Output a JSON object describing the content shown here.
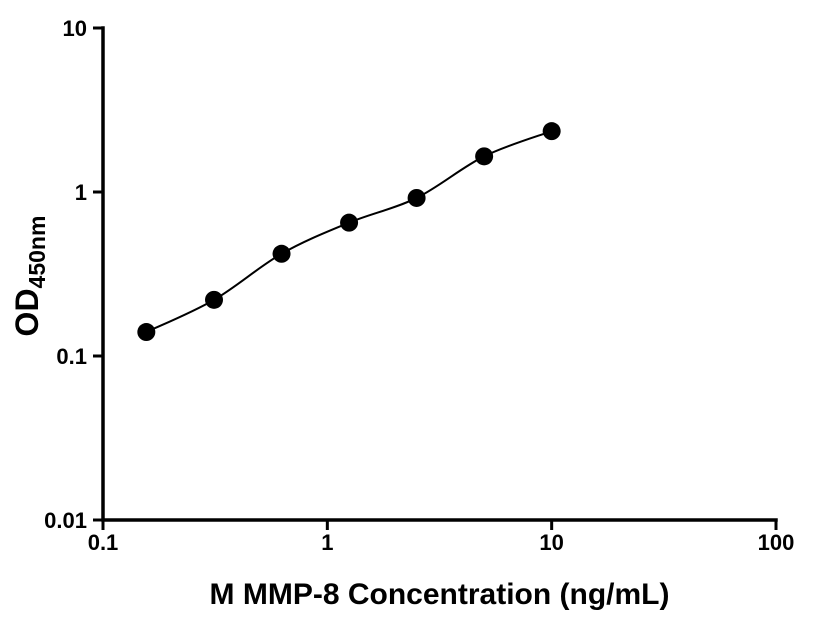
{
  "chart_data": {
    "type": "scatter",
    "title": "",
    "xlabel": "M MMP-8 Concentration (ng/mL)",
    "ylabel_main": "OD",
    "ylabel_sub": "450nm",
    "x_scale": "log",
    "y_scale": "log",
    "xlim": [
      0.1,
      100
    ],
    "ylim": [
      0.01,
      10
    ],
    "x_ticks": [
      "0.1",
      "1",
      "10",
      "100"
    ],
    "y_ticks": [
      "0.01",
      "0.1",
      "1",
      "10"
    ],
    "grid": false,
    "legend": "none",
    "background_color": "#ffffff",
    "axis_color": "#000000",
    "series": [
      {
        "x": [
          0.156,
          0.3125,
          0.625,
          1.25,
          2.5,
          5,
          10
        ],
        "y": [
          0.14,
          0.22,
          0.42,
          0.65,
          0.92,
          1.65,
          2.35
        ],
        "marker": "filled-circle",
        "line": "smooth",
        "color": "#000000"
      }
    ]
  }
}
